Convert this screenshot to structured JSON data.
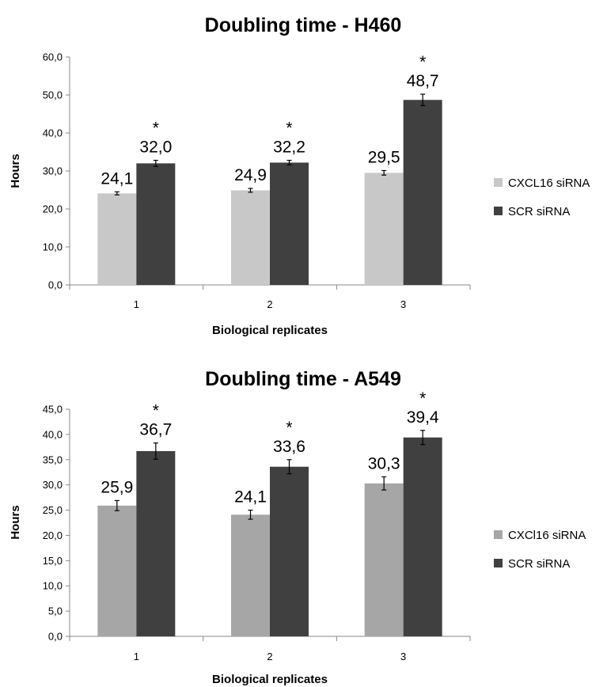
{
  "chart_data": [
    {
      "type": "bar",
      "title": "Doubling time - H460",
      "xlabel": "Biological replicates",
      "ylabel": "Hours",
      "categories": [
        "1",
        "2",
        "3"
      ],
      "ylim": [
        0,
        60
      ],
      "yticks": [
        "0,0",
        "10,0",
        "20,0",
        "30,0",
        "40,0",
        "50,0",
        "60,0"
      ],
      "grid": false,
      "legend_position": "right",
      "series": [
        {
          "name": "CXCL16 siRNA",
          "color": "#c8c8c8",
          "values": [
            24.1,
            24.9,
            29.5
          ],
          "labels": [
            "24,1",
            "24,9",
            "29,5"
          ],
          "errors": [
            0.4,
            0.5,
            0.6
          ],
          "marks": [
            "",
            "",
            ""
          ]
        },
        {
          "name": "SCR siRNA",
          "color": "#404040",
          "values": [
            32.0,
            32.2,
            48.7
          ],
          "labels": [
            "32,0",
            "32,2",
            "48,7"
          ],
          "errors": [
            0.8,
            0.6,
            1.5
          ],
          "marks": [
            "*",
            "*",
            "*"
          ]
        }
      ]
    },
    {
      "type": "bar",
      "title": "Doubling time - A549",
      "xlabel": "Biological replicates",
      "ylabel": "Hours",
      "categories": [
        "1",
        "2",
        "3"
      ],
      "ylim": [
        0,
        45
      ],
      "yticks": [
        "0,0",
        "5,0",
        "10,0",
        "15,0",
        "20,0",
        "25,0",
        "30,0",
        "35,0",
        "40,0",
        "45,0"
      ],
      "grid": false,
      "legend_position": "right",
      "series": [
        {
          "name": "CXCl16 siRNA",
          "color": "#a6a6a6",
          "values": [
            25.9,
            24.1,
            30.3
          ],
          "labels": [
            "25,9",
            "24,1",
            "30,3"
          ],
          "errors": [
            1.0,
            0.9,
            1.3
          ],
          "marks": [
            "",
            "",
            ""
          ]
        },
        {
          "name": "SCR siRNA",
          "color": "#404040",
          "values": [
            36.7,
            33.6,
            39.4
          ],
          "labels": [
            "36,7",
            "33,6",
            "39,4"
          ],
          "errors": [
            1.6,
            1.4,
            1.4
          ],
          "marks": [
            "*",
            "*",
            "*"
          ]
        }
      ]
    }
  ]
}
